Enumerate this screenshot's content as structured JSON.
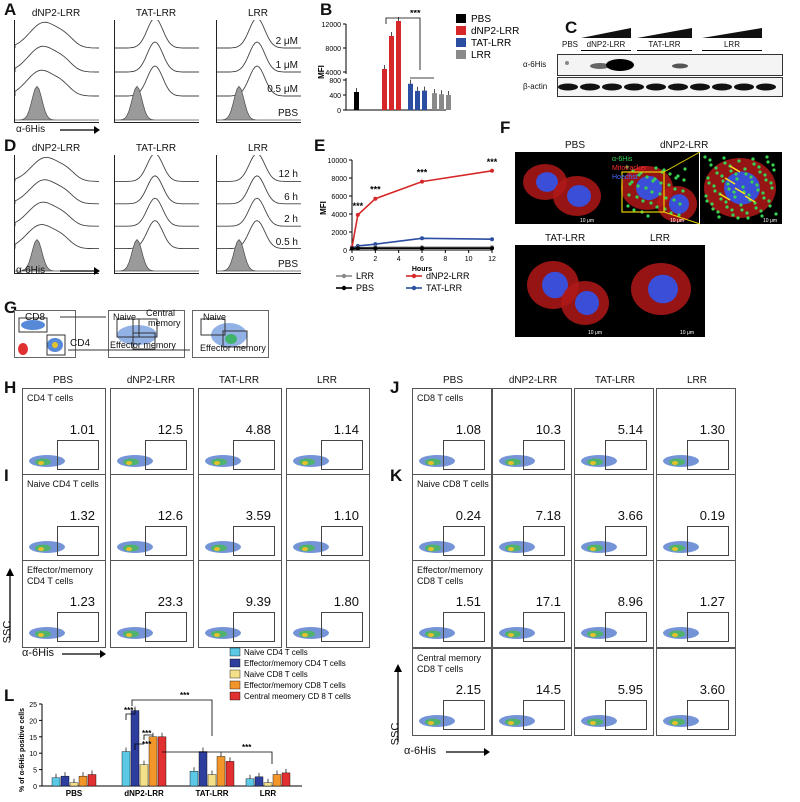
{
  "panels": {
    "A": "A",
    "B": "B",
    "C": "C",
    "D": "D",
    "E": "E",
    "F": "F",
    "G": "G",
    "H": "H",
    "I": "I",
    "J": "J",
    "K": "K",
    "L": "L"
  },
  "panelA": {
    "titles": [
      "dNP2-LRR",
      "TAT-LRR",
      "LRR"
    ],
    "rows": [
      "2 μM",
      "1 μM",
      "0.5 μM",
      "PBS"
    ],
    "xlabel": "α-6His"
  },
  "panelB": {
    "ylabel": "MFI",
    "yticks": [
      "12000",
      "8000",
      "4000",
      "800",
      "400",
      "0"
    ],
    "sig": "***",
    "legend": [
      {
        "label": "PBS",
        "color": "#000000"
      },
      {
        "label": "dNP2-LRR",
        "color": "#d62828"
      },
      {
        "label": "TAT-LRR",
        "color": "#2b4ea2"
      },
      {
        "label": "LRR",
        "color": "#8a8a8a"
      }
    ],
    "chart_data": {
      "type": "bar",
      "categories": [
        "PBS",
        "dNP2-LRR",
        "TAT-LRR",
        "LRR"
      ],
      "series": [
        {
          "values": [
            [
              480
            ],
            [
              4500,
              10000,
              12500
            ],
            [
              700,
              850,
              900
            ],
            [
              450,
              420,
              400
            ]
          ]
        }
      ]
    }
  },
  "panelC": {
    "groups": [
      "PBS",
      "dNP2-LRR",
      "TAT-LRR",
      "LRR"
    ],
    "rows": [
      "α-6His",
      "β-actin"
    ]
  },
  "panelD": {
    "titles": [
      "dNP2-LRR",
      "TAT-LRR",
      "LRR"
    ],
    "rows": [
      "12 h",
      "6 h",
      "2 h",
      "0.5 h",
      "PBS"
    ],
    "xlabel": "α-6His"
  },
  "panelE": {
    "ylabel": "MFI",
    "xlabel": "Hours",
    "yticks": [
      "10000",
      "8000",
      "6000",
      "4000",
      "2000",
      "0"
    ],
    "xticks": [
      "0",
      "2",
      "4",
      "6",
      "8",
      "10",
      "12"
    ],
    "sig": [
      "***",
      "***",
      "***",
      "***"
    ],
    "legend": [
      {
        "label": "LRR",
        "color": "#8a8a8a"
      },
      {
        "label": "dNP2-LRR",
        "color": "#d62828"
      },
      {
        "label": "PBS",
        "color": "#000000"
      },
      {
        "label": "TAT-LRR",
        "color": "#2b4ea2"
      }
    ],
    "chart_data": {
      "type": "line",
      "x": [
        0,
        0.5,
        2,
        6,
        12
      ],
      "series": [
        {
          "name": "dNP2-LRR",
          "values": [
            300,
            3900,
            5700,
            7600,
            8800
          ]
        },
        {
          "name": "TAT-LRR",
          "values": [
            200,
            450,
            650,
            1300,
            1200
          ]
        },
        {
          "name": "LRR",
          "values": [
            150,
            250,
            300,
            300,
            300
          ]
        },
        {
          "name": "PBS",
          "values": [
            150,
            200,
            200,
            200,
            200
          ]
        }
      ],
      "xlim": [
        0,
        12
      ],
      "ylim": [
        0,
        10000
      ]
    }
  },
  "panelF": {
    "top": [
      "PBS",
      "dNP2-LRR"
    ],
    "bottom": [
      "TAT-LRR",
      "LRR"
    ],
    "stains": [
      {
        "label": "α-6His",
        "color": "#39d353"
      },
      {
        "label": "Mitotracker",
        "color": "#ff3030"
      },
      {
        "label": "Hoechst",
        "color": "#4a6cff"
      }
    ],
    "scale": "10 μm"
  },
  "panelG": {
    "labels": {
      "cd8": "CD8",
      "cd4": "CD4",
      "naive": "Naive",
      "central": "Central",
      "memory": "memory",
      "effector": "Effector memory"
    }
  },
  "panelH": {
    "cols": [
      "PBS",
      "dNP2-LRR",
      "TAT-LRR",
      "LRR"
    ],
    "label": "CD4 T cells",
    "values": [
      "1.01",
      "12.5",
      "4.88",
      "1.14"
    ]
  },
  "panelI": {
    "label": "Naive CD4 T cells",
    "values": [
      "1.32",
      "12.6",
      "3.59",
      "1.10"
    ],
    "label2a": "Effector/memory",
    "label2b": "CD4 T cells",
    "values2": [
      "1.23",
      "23.3",
      "9.39",
      "1.80"
    ],
    "ssc": "SSC",
    "xlabel": "α-6His"
  },
  "panelJ": {
    "cols": [
      "PBS",
      "dNP2-LRR",
      "TAT-LRR",
      "LRR"
    ],
    "label": "CD8 T cells",
    "values": [
      "1.08",
      "10.3",
      "5.14",
      "1.30"
    ]
  },
  "panelK": {
    "label": "Naive CD8 T cells",
    "values": [
      "0.24",
      "7.18",
      "3.66",
      "0.19"
    ],
    "label2a": "Effector/memory",
    "label2b": "CD8 T cells",
    "values2": [
      "1.51",
      "17.1",
      "8.96",
      "1.27"
    ],
    "label3a": "Central memory",
    "label3b": "CD8 T cells",
    "values3": [
      "2.15",
      "14.5",
      "5.95",
      "3.60"
    ],
    "ssc": "SSC",
    "xlabel": "α-6His"
  },
  "panelL": {
    "ylabel": "% of α-6His positive cells",
    "yticks": [
      "25",
      "20",
      "15",
      "10",
      "5",
      "0"
    ],
    "categories": [
      "PBS",
      "dNP2-LRR",
      "TAT-LRR",
      "LRR"
    ],
    "sig": "***",
    "legend": [
      {
        "label": "Naive CD4 T cells",
        "color": "#5bc8e6"
      },
      {
        "label": "Effector/memory CD4 T cells",
        "color": "#2e3e9e"
      },
      {
        "label": "Naive CD8 T cells",
        "color": "#f5e08a"
      },
      {
        "label": "Effector/memory CD8 T cells",
        "color": "#f2962a"
      },
      {
        "label": "Central meomery CD 8 T cells",
        "color": "#e03030"
      }
    ],
    "chart_data": {
      "type": "bar",
      "categories": [
        "PBS",
        "dNP2-LRR",
        "TAT-LRR",
        "LRR"
      ],
      "series": [
        {
          "name": "Naive CD4 T cells",
          "values": [
            2.5,
            10.5,
            4.5,
            2.2
          ]
        },
        {
          "name": "Effector/memory CD4 T cells",
          "values": [
            3.0,
            23.0,
            10.5,
            2.8
          ]
        },
        {
          "name": "Naive CD8 T cells",
          "values": [
            1.0,
            6.5,
            3.5,
            1.0
          ]
        },
        {
          "name": "Effector/memory CD8 T cells",
          "values": [
            3.0,
            15.0,
            9.0,
            3.5
          ]
        },
        {
          "name": "Central meomery CD 8 T cells",
          "values": [
            3.5,
            15.0,
            7.5,
            4.0
          ]
        }
      ],
      "ylim": [
        0,
        25
      ]
    }
  }
}
